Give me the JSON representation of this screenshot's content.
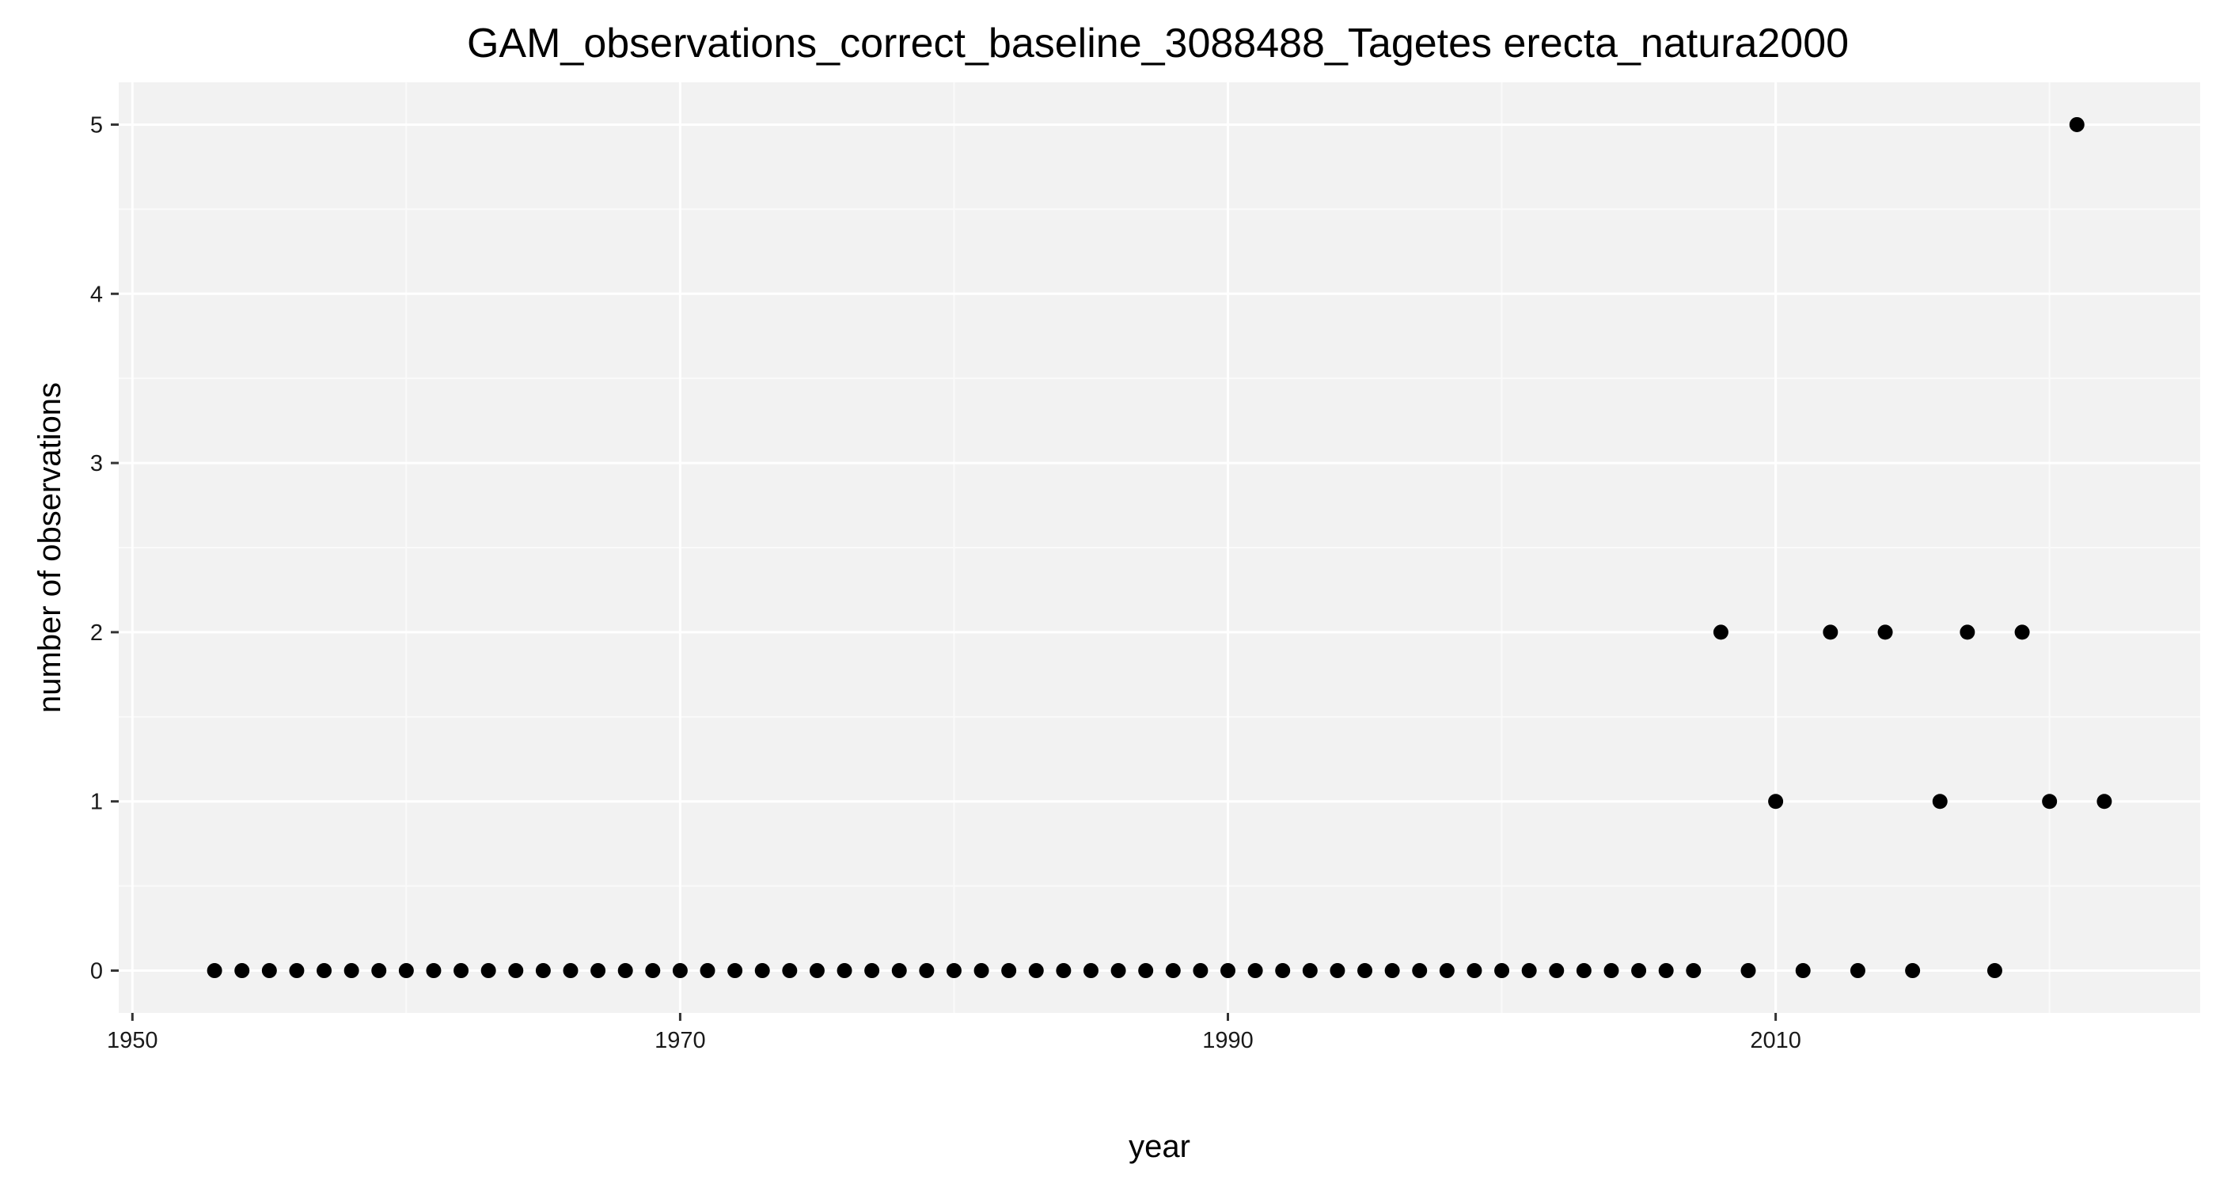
{
  "chart_data": {
    "type": "scatter",
    "title": "GAM_observations_correct_baseline_3088488_Tagetes erecta_natura2000",
    "xlabel": "year",
    "ylabel": "number of observations",
    "xlim": [
      1949.5,
      2025.5
    ],
    "ylim": [
      -0.25,
      5.25
    ],
    "x_ticks": [
      1950,
      1970,
      1990,
      2010
    ],
    "x_tick_labels": [
      "1950",
      "1970",
      "1990",
      "2010"
    ],
    "x_minor_ticks": [
      1960,
      1980,
      2000,
      2020
    ],
    "y_ticks": [
      0,
      1,
      2,
      3,
      4,
      5
    ],
    "y_tick_labels": [
      "0",
      "1",
      "2",
      "3",
      "4",
      "5"
    ],
    "y_minor_ticks": [
      0.5,
      1.5,
      2.5,
      3.5,
      4.5
    ],
    "grid": true,
    "legend": "none",
    "colors": {
      "panel_background": "#f2f2f2",
      "grid_major": "#ffffff",
      "grid_minor": "#fafafa",
      "point": "#000000",
      "tick_mark": "#333333"
    },
    "series": [
      {
        "points": [
          [
            1953,
            0
          ],
          [
            1954,
            0
          ],
          [
            1955,
            0
          ],
          [
            1956,
            0
          ],
          [
            1957,
            0
          ],
          [
            1958,
            0
          ],
          [
            1959,
            0
          ],
          [
            1960,
            0
          ],
          [
            1961,
            0
          ],
          [
            1962,
            0
          ],
          [
            1963,
            0
          ],
          [
            1964,
            0
          ],
          [
            1965,
            0
          ],
          [
            1966,
            0
          ],
          [
            1967,
            0
          ],
          [
            1968,
            0
          ],
          [
            1969,
            0
          ],
          [
            1970,
            0
          ],
          [
            1971,
            0
          ],
          [
            1972,
            0
          ],
          [
            1973,
            0
          ],
          [
            1974,
            0
          ],
          [
            1975,
            0
          ],
          [
            1976,
            0
          ],
          [
            1977,
            0
          ],
          [
            1978,
            0
          ],
          [
            1979,
            0
          ],
          [
            1980,
            0
          ],
          [
            1981,
            0
          ],
          [
            1982,
            0
          ],
          [
            1983,
            0
          ],
          [
            1984,
            0
          ],
          [
            1985,
            0
          ],
          [
            1986,
            0
          ],
          [
            1987,
            0
          ],
          [
            1988,
            0
          ],
          [
            1989,
            0
          ],
          [
            1990,
            0
          ],
          [
            1991,
            0
          ],
          [
            1992,
            0
          ],
          [
            1993,
            0
          ],
          [
            1994,
            0
          ],
          [
            1995,
            0
          ],
          [
            1996,
            0
          ],
          [
            1997,
            0
          ],
          [
            1998,
            0
          ],
          [
            1999,
            0
          ],
          [
            2000,
            0
          ],
          [
            2001,
            0
          ],
          [
            2002,
            0
          ],
          [
            2003,
            0
          ],
          [
            2004,
            0
          ],
          [
            2005,
            0
          ],
          [
            2006,
            0
          ],
          [
            2007,
            0
          ],
          [
            2008,
            2
          ],
          [
            2009,
            0
          ],
          [
            2010,
            1
          ],
          [
            2011,
            0
          ],
          [
            2012,
            2
          ],
          [
            2013,
            0
          ],
          [
            2014,
            2
          ],
          [
            2015,
            0
          ],
          [
            2016,
            1
          ],
          [
            2017,
            2
          ],
          [
            2018,
            0
          ],
          [
            2019,
            2
          ],
          [
            2020,
            1
          ],
          [
            2021,
            5
          ],
          [
            2022,
            1
          ]
        ]
      }
    ]
  }
}
